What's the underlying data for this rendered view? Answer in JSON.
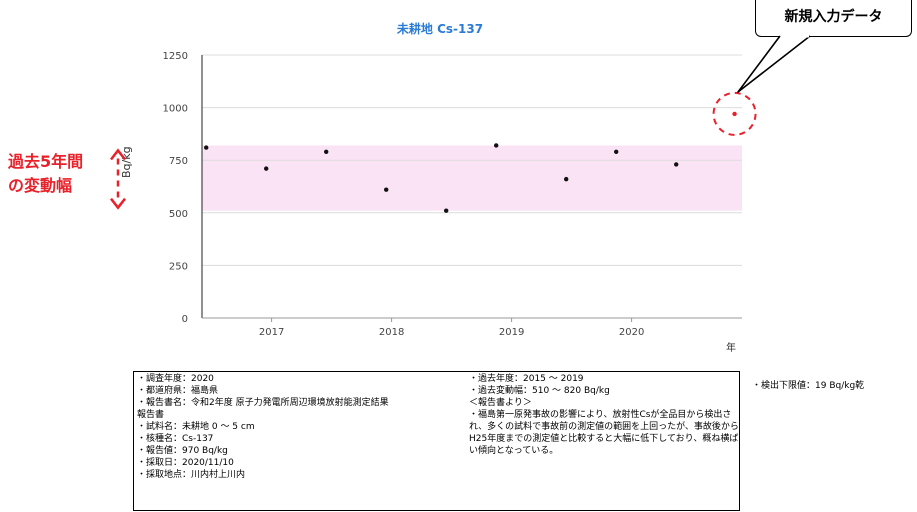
{
  "chart_data": {
    "type": "scatter",
    "title": "未耕地 Cs-137",
    "ylabel": "Bq/kg",
    "xlabel": "年",
    "ylim": [
      0,
      1250
    ],
    "yticks": [
      "0",
      "250",
      "500",
      "750",
      "1000",
      "1250"
    ],
    "xticks": [
      "2017",
      "2018",
      "2019",
      "2020"
    ],
    "grid": true,
    "past_range": [
      510,
      820
    ],
    "series": [
      {
        "points": [
          {
            "x": "2016/06",
            "y": 810
          },
          {
            "x": "2016/12",
            "y": 710
          },
          {
            "x": "2017/06",
            "y": 790
          },
          {
            "x": "2017/12",
            "y": 610
          },
          {
            "x": "2018/06",
            "y": 510
          },
          {
            "x": "2018/11",
            "y": 820
          },
          {
            "x": "2019/06",
            "y": 660
          },
          {
            "x": "2019/11",
            "y": 790
          },
          {
            "x": "2020/05",
            "y": 730
          }
        ]
      },
      {
        "points": [
          {
            "x": "2020/11/10",
            "y": 970
          }
        ]
      }
    ]
  },
  "callout": "新規入力データ",
  "range_label": [
    "過去5年間",
    "の変動幅"
  ],
  "info": {
    "left": [
      "・調査年度：2020",
      "・都道府県：福島県",
      "・報告書名：令和2年度 原子力発電所周辺環境放射能測定結果",
      "報告書",
      "・試料名：未耕地 0 ～ 5 cm",
      "・核種名：Cs-137",
      "・報告値：970 Bq/kg",
      "・採取日：2020/11/10",
      "・採取地点：川内村上川内"
    ],
    "right": [
      "・過去年度：2015 ～ 2019",
      "・過去変動幅：510 ～ 820 Bq/kg",
      "＜報告書より＞"
    ],
    "note": "・福島第一原発事故の影響により、放射性Csが全品目から検出され、多くの試料で事故前の測定値の範囲を上回ったが、事故後からH25年度までの測定値と比較すると大幅に低下しており、概ね横ばい傾向となっている。"
  },
  "detection_limit": "・検出下限値：19 Bq/kg乾"
}
